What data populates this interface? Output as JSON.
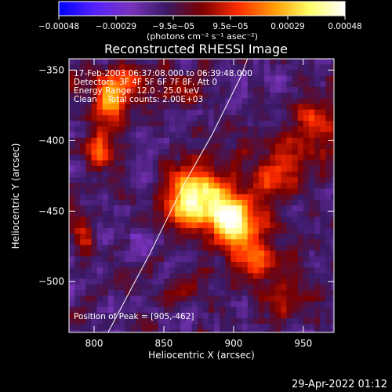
{
  "chart_data": {
    "type": "heatmap",
    "title": "Reconstructed RHESSI Image",
    "xlabel": "Heliocentric X (arcsec)",
    "ylabel": "Heliocentric Y (arcsec)",
    "xlim": [
      782,
      972
    ],
    "ylim": [
      -536,
      -342
    ],
    "x_ticks": [
      800,
      850,
      900,
      950
    ],
    "x_tick_labels": [
      "800",
      "850",
      "900",
      "950"
    ],
    "y_ticks": [
      -350,
      -400,
      -450,
      -500
    ],
    "y_tick_labels": [
      "−350",
      "−400",
      "−450",
      "−500"
    ],
    "colorbar": {
      "tick_labels": [
        "−0.00048",
        "−0.00029",
        "−9.5e−05",
        "9.5e−05",
        "0.00029",
        "0.00048"
      ],
      "range": [
        -0.00048,
        0.00048
      ],
      "colors": [
        "#0000ff",
        "#5522ff",
        "#7a33bb",
        "#3a1a66",
        "#7a0000",
        "#ff2a00",
        "#ff9900",
        "#ffff66",
        "#ffffff"
      ],
      "units_label": "(photons cm⁻² s⁻¹ asec⁻²)"
    },
    "annotations": [
      "17-Feb-2003 06:37:08.000 to 06:39:48.000",
      "Detectors: 3F 4F 5F 6F 7F 8F, Att 0",
      "Energy Range: 12.0 - 25.0 keV",
      "Clean    Total counts: 2.00E+03",
      "Position of Peak = [905,-462]"
    ],
    "peak": [
      905,
      -462
    ],
    "limb": [
      [
        810,
        -536
      ],
      [
        840,
        -480
      ],
      [
        865,
        -430
      ],
      [
        885,
        -395
      ],
      [
        905,
        -355
      ],
      [
        910,
        -342
      ]
    ],
    "sources": [
      {
        "x": 903,
        "y": -460,
        "amp": 0.00046,
        "sx": 11,
        "sy": 11
      },
      {
        "x": 886,
        "y": -447,
        "amp": 0.00038,
        "sx": 16,
        "sy": 13
      },
      {
        "x": 872,
        "y": -432,
        "amp": 0.00034,
        "sx": 14,
        "sy": 12
      },
      {
        "x": 862,
        "y": -448,
        "amp": 0.00022,
        "sx": 10,
        "sy": 9
      },
      {
        "x": 928,
        "y": -425,
        "amp": 0.00024,
        "sx": 14,
        "sy": 11
      },
      {
        "x": 918,
        "y": -488,
        "amp": 0.00024,
        "sx": 15,
        "sy": 12
      },
      {
        "x": 940,
        "y": -515,
        "amp": 0.00018,
        "sx": 10,
        "sy": 8
      },
      {
        "x": 955,
        "y": -395,
        "amp": 0.00022,
        "sx": 14,
        "sy": 20
      },
      {
        "x": 812,
        "y": -372,
        "amp": 0.00044,
        "sx": 9,
        "sy": 11
      },
      {
        "x": 803,
        "y": -408,
        "amp": 0.00022,
        "sx": 8,
        "sy": 10
      },
      {
        "x": 825,
        "y": -355,
        "amp": 0.00018,
        "sx": 12,
        "sy": 7
      },
      {
        "x": 858,
        "y": -363,
        "amp": 0.00016,
        "sx": 12,
        "sy": 8
      },
      {
        "x": 792,
        "y": -470,
        "amp": 0.00016,
        "sx": 6,
        "sy": 12
      },
      {
        "x": 865,
        "y": -505,
        "amp": 0.00012,
        "sx": 9,
        "sy": 7
      }
    ],
    "background": {
      "level": -0.00013,
      "noise": 0.00011
    }
  },
  "footer": {
    "timestamp": "29-Apr-2022 01:12"
  }
}
